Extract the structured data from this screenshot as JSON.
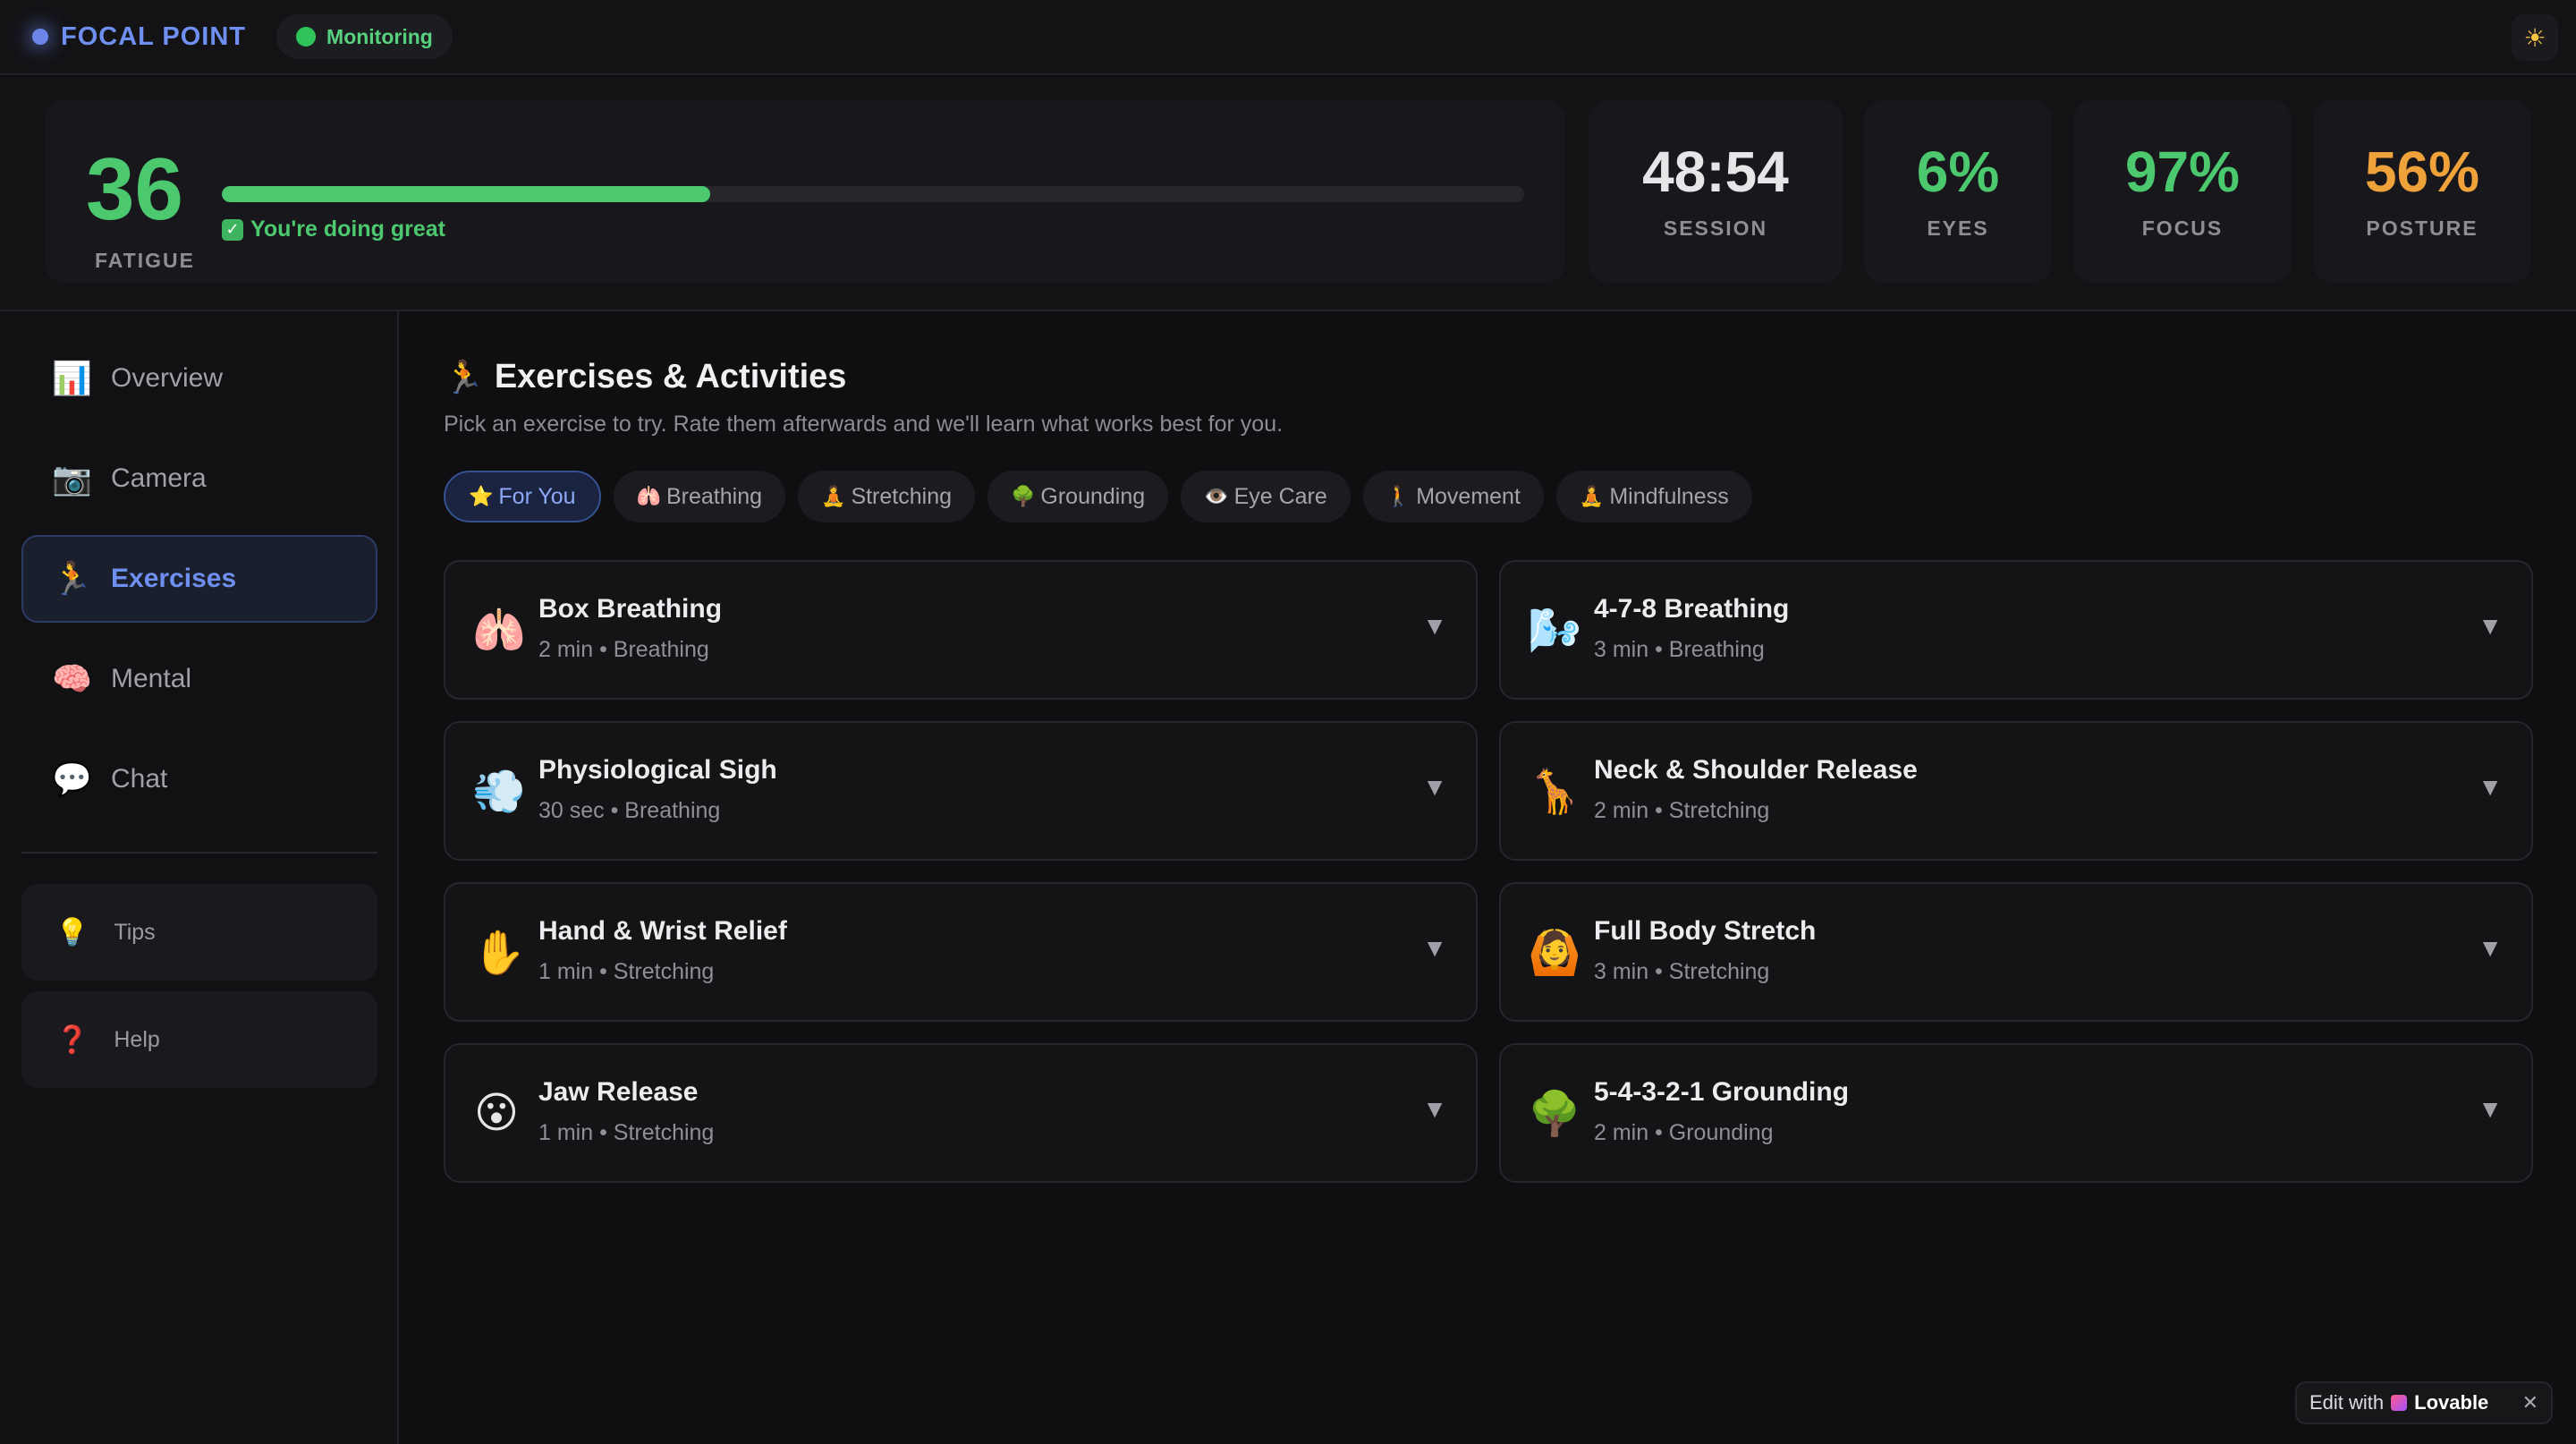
{
  "header": {
    "brand": "FOCAL POINT",
    "status": "Monitoring",
    "theme_icon": "sun-icon"
  },
  "stats": {
    "fatigue": {
      "value": "36",
      "label": "FATIGUE",
      "progress": 0.375,
      "status": "You're doing great"
    },
    "session": {
      "value": "48:54",
      "label": "SESSION",
      "color": "#e6e6e9"
    },
    "eyes": {
      "value": "6%",
      "label": "EYES",
      "color": "#4cc86f"
    },
    "focus": {
      "value": "97%",
      "label": "FOCUS",
      "color": "#4cc86f"
    },
    "posture": {
      "value": "56%",
      "label": "POSTURE",
      "color": "#f0a23a"
    }
  },
  "sidebar": {
    "items": [
      {
        "icon": "📊",
        "label": "Overview"
      },
      {
        "icon": "📷",
        "label": "Camera"
      },
      {
        "icon": "🏃",
        "label": "Exercises",
        "active": true
      },
      {
        "icon": "🧠",
        "label": "Mental"
      },
      {
        "icon": "💬",
        "label": "Chat"
      }
    ],
    "utilities": [
      {
        "icon": "💡",
        "label": "Tips"
      },
      {
        "icon": "❓",
        "label": "Help"
      }
    ]
  },
  "main": {
    "title_icon": "🏃",
    "title": "Exercises & Activities",
    "subtitle": "Pick an exercise to try. Rate them afterwards and we'll learn what works best for you.",
    "filters": [
      {
        "icon": "⭐",
        "label": "For You",
        "active": true
      },
      {
        "icon": "🫁",
        "label": "Breathing"
      },
      {
        "icon": "🧘",
        "label": "Stretching"
      },
      {
        "icon": "🌳",
        "label": "Grounding"
      },
      {
        "icon": "👁️",
        "label": "Eye Care"
      },
      {
        "icon": "🚶",
        "label": "Movement"
      },
      {
        "icon": "🧘",
        "label": "Mindfulness"
      }
    ],
    "exercises": [
      {
        "icon": "🫁",
        "title": "Box Breathing",
        "meta": "2 min • Breathing"
      },
      {
        "icon": "🌬️",
        "title": "4-7-8 Breathing",
        "meta": "3 min • Breathing"
      },
      {
        "icon": "💨",
        "title": "Physiological Sigh",
        "meta": "30 sec • Breathing"
      },
      {
        "icon": "🦒",
        "title": "Neck & Shoulder Release",
        "meta": "2 min • Stretching"
      },
      {
        "icon": "✋",
        "title": "Hand & Wrist Relief",
        "meta": "1 min • Stretching"
      },
      {
        "icon": "🙆",
        "title": "Full Body Stretch",
        "meta": "3 min • Stretching"
      },
      {
        "icon": "😮",
        "title": "Jaw Release",
        "meta": "1 min • Stretching"
      },
      {
        "icon": "🌳",
        "title": "5-4-3-2-1 Grounding",
        "meta": "2 min • Grounding"
      }
    ],
    "chevron": "▼"
  },
  "badge": {
    "text": "Edit with",
    "brand": "Lovable",
    "close": "✕"
  }
}
